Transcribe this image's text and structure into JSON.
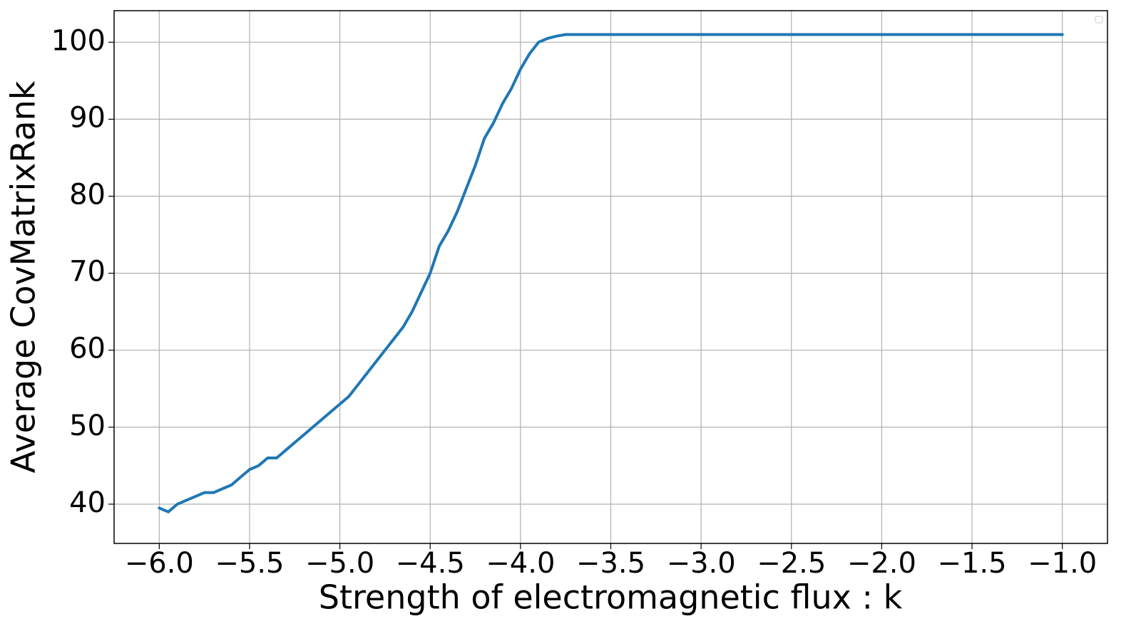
{
  "chart_data": {
    "type": "line",
    "x_label": "Strength of electromagnetic flux : k",
    "y_label": "Average CovMatrixRank",
    "x": [
      -6.0,
      -5.95,
      -5.9,
      -5.85,
      -5.8,
      -5.75,
      -5.7,
      -5.65,
      -5.6,
      -5.55,
      -5.5,
      -5.45,
      -5.4,
      -5.35,
      -5.3,
      -5.25,
      -5.2,
      -5.15,
      -5.1,
      -5.05,
      -5.0,
      -4.95,
      -4.9,
      -4.85,
      -4.8,
      -4.75,
      -4.7,
      -4.65,
      -4.6,
      -4.55,
      -4.5,
      -4.45,
      -4.4,
      -4.35,
      -4.3,
      -4.25,
      -4.2,
      -4.15,
      -4.1,
      -4.05,
      -4.0,
      -3.95,
      -3.9,
      -3.85,
      -3.8,
      -3.75,
      -3.7,
      -3.65,
      -1.0
    ],
    "series": [
      {
        "color": "#1f77b4",
        "values": [
          39.5,
          39,
          40,
          40.5,
          41,
          41.5,
          41.5,
          42,
          42.5,
          43.5,
          44.5,
          45,
          46,
          46,
          47,
          48,
          49,
          50,
          51,
          52,
          53,
          54,
          55.5,
          57,
          58.5,
          60,
          61.5,
          63,
          65,
          67.5,
          70,
          73.5,
          75.5,
          78,
          81,
          84,
          87.5,
          89.5,
          92,
          94,
          96.5,
          98.5,
          100,
          100.5,
          100.8,
          101,
          101,
          101,
          101
        ]
      }
    ],
    "xlim": [
      -6.25,
      -0.75
    ],
    "ylim": [
      34.9,
      104.1
    ],
    "xticks": [
      {
        "value": -6.0,
        "label": "−6.0"
      },
      {
        "value": -5.5,
        "label": "−5.5"
      },
      {
        "value": -5.0,
        "label": "−5.0"
      },
      {
        "value": -4.5,
        "label": "−4.5"
      },
      {
        "value": -4.0,
        "label": "−4.0"
      },
      {
        "value": -3.5,
        "label": "−3.5"
      },
      {
        "value": -3.0,
        "label": "−3.0"
      },
      {
        "value": -2.5,
        "label": "−2.5"
      },
      {
        "value": -2.0,
        "label": "−2.0"
      },
      {
        "value": -1.5,
        "label": "−1.5"
      },
      {
        "value": -1.0,
        "label": "−1.0"
      }
    ],
    "yticks": [
      40,
      50,
      60,
      70,
      80,
      90,
      100
    ],
    "grid": true
  }
}
